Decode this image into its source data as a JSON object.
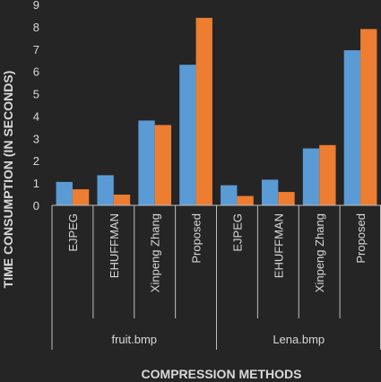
{
  "chart_data": {
    "type": "bar",
    "ylabel": "TIME CONSUMPTION (IN SECONDS)",
    "xlabel": "COMPRESSION METHODS",
    "ylim": [
      0,
      9
    ],
    "yticks": [
      "0",
      "1",
      "2",
      "3",
      "4",
      "5",
      "6",
      "7",
      "8",
      "9"
    ],
    "grid": false,
    "groups": [
      {
        "label": "fruit.bmp",
        "categories": [
          "EJPEG",
          "EHUFFMAN",
          "Xinpeng Zhang",
          "Proposed"
        ],
        "series_values": [
          [
            1.05,
            1.35,
            3.8,
            6.3
          ],
          [
            0.72,
            0.48,
            3.6,
            8.4
          ]
        ]
      },
      {
        "label": "Lena.bmp",
        "categories": [
          "EJPEG",
          "EHUFFMAN",
          "Xinpeng Zhang",
          "Proposed"
        ],
        "series_values": [
          [
            0.9,
            1.15,
            2.55,
            6.95
          ],
          [
            0.42,
            0.6,
            2.7,
            7.9
          ]
        ]
      }
    ],
    "series_colors": [
      "#5b9bd5",
      "#ed7d31"
    ]
  }
}
